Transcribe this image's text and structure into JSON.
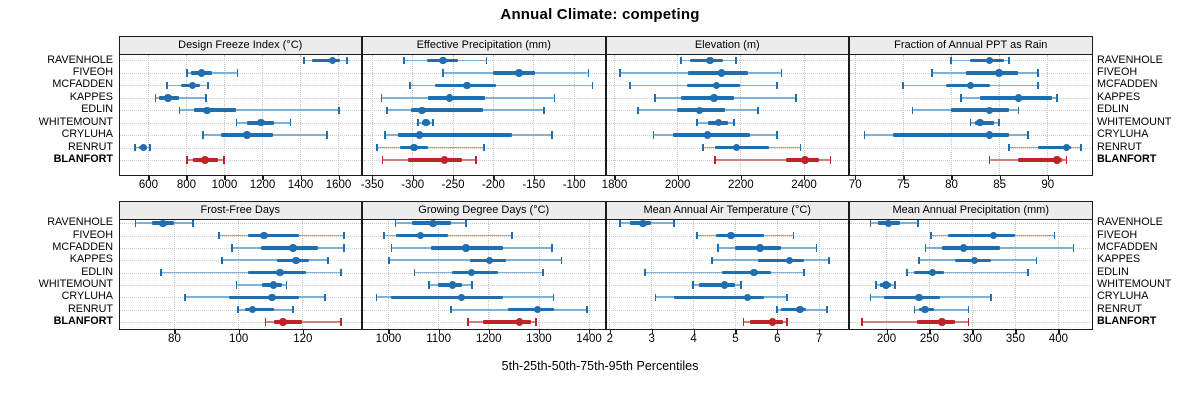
{
  "title": "Annual Climate: competing",
  "xlabel": "5th-25th-50th-75th-95th Percentiles",
  "percentile_levels": [
    5,
    25,
    50,
    75,
    95
  ],
  "sites": [
    "RAVENHOLE",
    "FIVEOH",
    "MCFADDEN",
    "KAPPES",
    "EDLIN",
    "WHITEMOUNT",
    "CRYLUHA",
    "RENRUT",
    "BLANFORT"
  ],
  "highlight_site": "BLANFORT",
  "colors": {
    "series_line": "#7fb0d6",
    "series_main": "#1f6eb0",
    "highlight_line": "#d47f7f",
    "highlight_main": "#bf2228",
    "grid": "#c8c8c8",
    "strip_bg": "#ececec",
    "border": "#1c1c1c"
  },
  "chart_data": [
    {
      "type": "interval-dotplot",
      "title": "Design Freeze Index (°C)",
      "xlim": [
        450,
        1716
      ],
      "xticks": [
        600,
        800,
        1000,
        1200,
        1400,
        1600
      ],
      "series": {
        "RAVENHOLE": [
          1420,
          1465,
          1570,
          1610,
          1645
        ],
        "FIVEOH": [
          805,
          825,
          880,
          935,
          1070
        ],
        "MCFADDEN": [
          700,
          775,
          835,
          875,
          915
        ],
        "KAPPES": [
          640,
          660,
          705,
          765,
          905
        ],
        "EDLIN": [
          765,
          840,
          910,
          1065,
          1605
        ],
        "WHITEMOUNT": [
          1065,
          1120,
          1195,
          1265,
          1350
        ],
        "CRYLUHA": [
          890,
          985,
          1120,
          1255,
          1540
        ],
        "RENRUT": [
          530,
          550,
          575,
          595,
          610
        ],
        "BLANFORT": [
          805,
          835,
          900,
          970,
          1000
        ]
      }
    },
    {
      "type": "interval-dotplot",
      "title": "Effective Precipitation (mm)",
      "xlim": [
        -361,
        -63
      ],
      "xticks": [
        -350,
        -300,
        -250,
        -200,
        -150,
        -100
      ],
      "series": {
        "RAVENHOLE": [
          -310,
          -282,
          -262,
          -243,
          -208
        ],
        "FIVEOH": [
          -262,
          -200,
          -168,
          -148,
          -82
        ],
        "MCFADDEN": [
          -303,
          -272,
          -232,
          -196,
          -77
        ],
        "KAPPES": [
          -338,
          -281,
          -254,
          -210,
          -124
        ],
        "EDLIN": [
          -331,
          -302,
          -288,
          -212,
          -137
        ],
        "WHITEMOUNT": [
          -293,
          -288,
          -283,
          -278,
          -274
        ],
        "CRYLUHA": [
          -334,
          -318,
          -291,
          -177,
          -127
        ],
        "RENRUT": [
          -344,
          -315,
          -298,
          -280,
          -211
        ],
        "BLANFORT": [
          -337,
          -305,
          -260,
          -238,
          -221
        ]
      }
    },
    {
      "type": "interval-dotplot",
      "title": "Elevation (m)",
      "xlim": [
        1776,
        2538
      ],
      "xticks": [
        1800,
        2000,
        2200,
        2400
      ],
      "series": {
        "RAVENHOLE": [
          2012,
          2040,
          2103,
          2145,
          2185
        ],
        "FIVEOH": [
          1818,
          2035,
          2140,
          2225,
          2330
        ],
        "MCFADDEN": [
          1850,
          2030,
          2125,
          2200,
          2315
        ],
        "KAPPES": [
          1930,
          2012,
          2117,
          2180,
          2377
        ],
        "EDLIN": [
          1876,
          2000,
          2070,
          2150,
          2255
        ],
        "WHITEMOUNT": [
          2062,
          2098,
          2130,
          2160,
          2180
        ],
        "CRYLUHA": [
          1925,
          1985,
          2095,
          2230,
          2315
        ],
        "RENRUT": [
          2082,
          2120,
          2187,
          2290,
          2390
        ],
        "BLANFORT": [
          2120,
          2343,
          2405,
          2448,
          2485
        ]
      }
    },
    {
      "type": "interval-dotplot",
      "title": "Fraction of Annual PPT as Rain",
      "xlim": [
        69.5,
        94.5
      ],
      "xticks": [
        70,
        75,
        80,
        85,
        90
      ],
      "series": {
        "RAVENHOLE": [
          80,
          82,
          84,
          85.5,
          86
        ],
        "FIVEOH": [
          78,
          81.5,
          85,
          87,
          89
        ],
        "MCFADDEN": [
          75,
          79.5,
          82,
          84,
          89
        ],
        "KAPPES": [
          81,
          83,
          87,
          90.5,
          91
        ],
        "EDLIN": [
          76,
          80,
          84,
          86,
          87
        ],
        "WHITEMOUNT": [
          82,
          82.5,
          83,
          84.5,
          85
        ],
        "CRYLUHA": [
          71,
          74,
          84,
          86,
          88
        ],
        "RENRUT": [
          86,
          89,
          92,
          92.5,
          93.5
        ],
        "BLANFORT": [
          84,
          87,
          91,
          91.5,
          92
        ]
      }
    },
    {
      "type": "interval-dotplot",
      "title": "Frost-Free Days",
      "xlim": [
        63,
        138
      ],
      "xticks": [
        80,
        100,
        120
      ],
      "series": {
        "RAVENHOLE": [
          68,
          73,
          76.5,
          80,
          86
        ],
        "FIVEOH": [
          94,
          103,
          108,
          119,
          133
        ],
        "MCFADDEN": [
          98,
          107,
          117,
          125,
          133
        ],
        "KAPPES": [
          95,
          112,
          118,
          122,
          128
        ],
        "EDLIN": [
          76,
          103,
          113,
          121,
          132
        ],
        "WHITEMOUNT": [
          99.5,
          107.5,
          111,
          113.5,
          115
        ],
        "CRYLUHA": [
          83.5,
          97,
          110.5,
          119,
          127
        ],
        "RENRUT": [
          100,
          102,
          104.5,
          111,
          117
        ],
        "BLANFORT": [
          108.5,
          111,
          114,
          120,
          132
        ]
      }
    },
    {
      "type": "interval-dotplot",
      "title": "Growing Degree Days (°C)",
      "xlim": [
        950,
        1430
      ],
      "xticks": [
        1000,
        1100,
        1200,
        1300,
        1400
      ],
      "series": {
        "RAVENHOLE": [
          1015,
          1048,
          1090,
          1125,
          1155
        ],
        "FIVEOH": [
          992,
          1015,
          1065,
          1120,
          1247
        ],
        "MCFADDEN": [
          1007,
          1085,
          1155,
          1230,
          1327
        ],
        "KAPPES": [
          1002,
          1163,
          1202,
          1236,
          1346
        ],
        "EDLIN": [
          1053,
          1128,
          1166,
          1220,
          1309
        ],
        "WHITEMOUNT": [
          1082,
          1100,
          1128,
          1147,
          1168
        ],
        "CRYLUHA": [
          977,
          1005,
          1146,
          1230,
          1330
        ],
        "RENRUT": [
          1125,
          1240,
          1298,
          1330,
          1397
        ],
        "BLANFORT": [
          1160,
          1190,
          1262,
          1285,
          1295
        ]
      }
    },
    {
      "type": "interval-dotplot",
      "title": "Mean Annual Air Temperature (°C)",
      "xlim": [
        1.93,
        7.68
      ],
      "xticks": [
        2,
        3,
        4,
        5,
        6,
        7
      ],
      "series": {
        "RAVENHOLE": [
          2.25,
          2.5,
          2.8,
          3.0,
          3.55
        ],
        "FIVEOH": [
          4.1,
          4.55,
          4.9,
          5.7,
          6.4
        ],
        "MCFADDEN": [
          4.6,
          5.0,
          5.6,
          6.1,
          6.95
        ],
        "KAPPES": [
          4.45,
          5.55,
          6.3,
          6.65,
          7.25
        ],
        "EDLIN": [
          2.85,
          4.7,
          5.45,
          5.85,
          6.65
        ],
        "WHITEMOUNT": [
          4.0,
          4.15,
          4.75,
          5.0,
          5.15
        ],
        "CRYLUHA": [
          3.1,
          3.55,
          5.3,
          5.7,
          6.25
        ],
        "RENRUT": [
          6.0,
          6.1,
          6.55,
          6.7,
          7.2
        ],
        "BLANFORT": [
          5.2,
          5.35,
          5.9,
          6.15,
          6.25
        ]
      }
    },
    {
      "type": "interval-dotplot",
      "title": "Mean Annual Precipitation (mm)",
      "xlim": [
        158,
        438
      ],
      "xticks": [
        200,
        250,
        300,
        350,
        400
      ],
      "series": {
        "RAVENHOLE": [
          182,
          190,
          203,
          216,
          237
        ],
        "FIVEOH": [
          252,
          272,
          325,
          350,
          396
        ],
        "MCFADDEN": [
          246,
          265,
          290,
          332,
          418
        ],
        "KAPPES": [
          238,
          280,
          303,
          322,
          375
        ],
        "EDLIN": [
          224,
          232,
          254,
          267,
          365
        ],
        "WHITEMOUNT": [
          188,
          193,
          200,
          206,
          210
        ],
        "CRYLUHA": [
          182,
          197,
          238,
          263,
          322
        ],
        "RENRUT": [
          233,
          238,
          245,
          256,
          296
        ],
        "BLANFORT": [
          172,
          236,
          265,
          280,
          296
        ]
      }
    }
  ]
}
